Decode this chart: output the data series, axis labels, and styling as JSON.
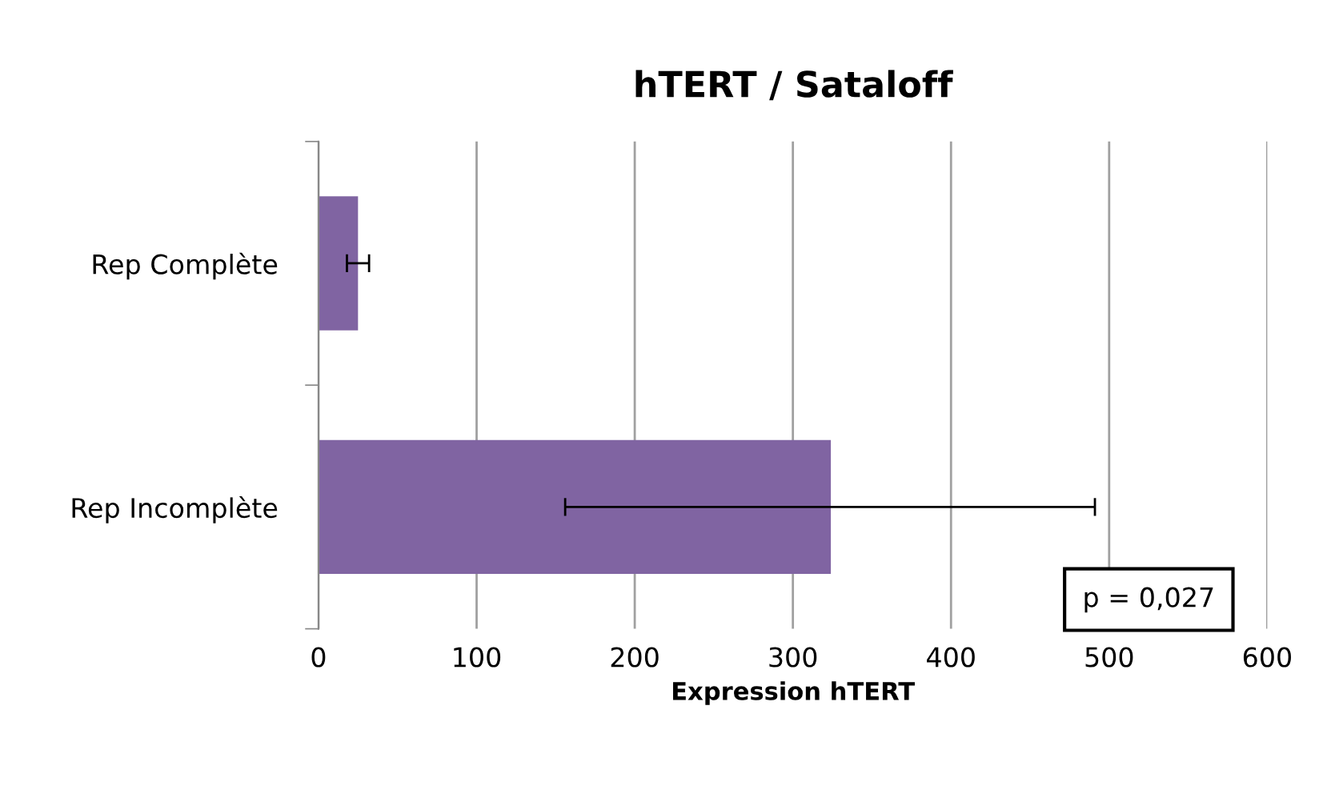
{
  "chart_data": {
    "type": "bar",
    "orientation": "horizontal",
    "title": "hTERT / Sataloff",
    "xlabel": "Expression hTERT",
    "categories": [
      "Rep Complète",
      "Rep Incomplète"
    ],
    "values": [
      25,
      324
    ],
    "color": "#8064a2",
    "errors": [
      [
        18,
        32
      ],
      [
        156,
        491
      ]
    ],
    "xlim": [
      0,
      600
    ],
    "xticks": [
      0,
      100,
      200,
      300,
      400,
      500,
      600
    ],
    "grid": "x",
    "annotations": [
      "p = 0,027"
    ]
  }
}
